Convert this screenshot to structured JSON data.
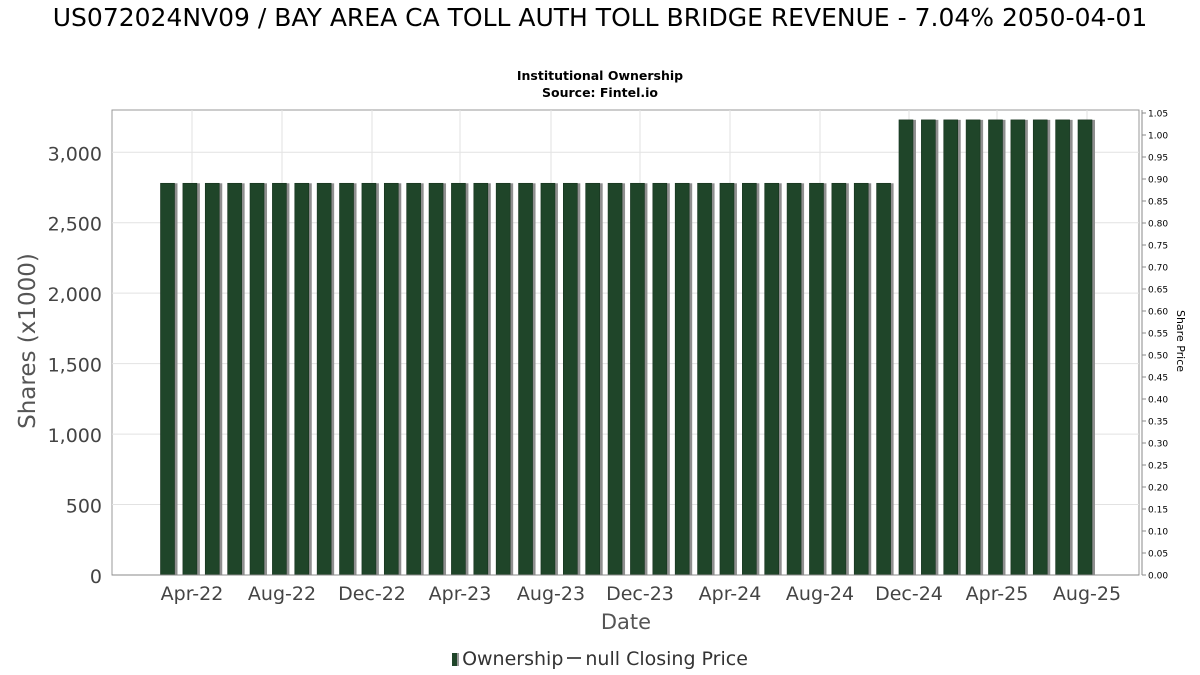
{
  "chart_data": {
    "type": "bar",
    "title": "US072024NV09 / BAY AREA CA TOLL AUTH TOLL BRIDGE REVENUE - 7.04% 2050-04-01",
    "subtitle": "Institutional Ownership",
    "source": "Source: Fintel.io",
    "xlabel": "Date",
    "ylabel": "Shares (x1000)",
    "y2label": "Share Price",
    "ylim": [
      0,
      3300
    ],
    "y2lim": [
      0,
      1.05
    ],
    "yticks": [
      0,
      500,
      1000,
      1500,
      2000,
      2500,
      3000
    ],
    "yticklabels": [
      "0",
      "500",
      "1,000",
      "1,500",
      "2,000",
      "2,500",
      "3,000"
    ],
    "y2ticklabels": [
      "0.00",
      "0.05",
      "0.10",
      "0.15",
      "0.20",
      "0.25",
      "0.30",
      "0.35",
      "0.40",
      "0.45",
      "0.50",
      "0.55",
      "0.60",
      "0.65",
      "0.70",
      "0.75",
      "0.80",
      "0.85",
      "0.90",
      "0.95",
      "1.00",
      "1.05"
    ],
    "xticklabels": [
      "Apr-22",
      "Aug-22",
      "Dec-22",
      "Apr-23",
      "Aug-23",
      "Dec-23",
      "Apr-24",
      "Aug-24",
      "Dec-24",
      "Apr-25",
      "Aug-25"
    ],
    "grid": true,
    "series": [
      {
        "name": "Ownership",
        "color": "#1f4529",
        "values": [
          2780,
          2780,
          2780,
          2780,
          2780,
          2780,
          2780,
          2780,
          2780,
          2780,
          2780,
          2780,
          2780,
          2780,
          2780,
          2780,
          2780,
          2780,
          2780,
          2780,
          2780,
          2780,
          2780,
          2780,
          2780,
          2780,
          2780,
          2780,
          2780,
          2780,
          2780,
          2780,
          2780,
          3230,
          3230,
          3230,
          3230,
          3230,
          3230,
          3230,
          3230,
          3230
        ]
      }
    ],
    "legend": {
      "ownership_label": "Ownership",
      "price_label": "null Closing Price"
    }
  }
}
